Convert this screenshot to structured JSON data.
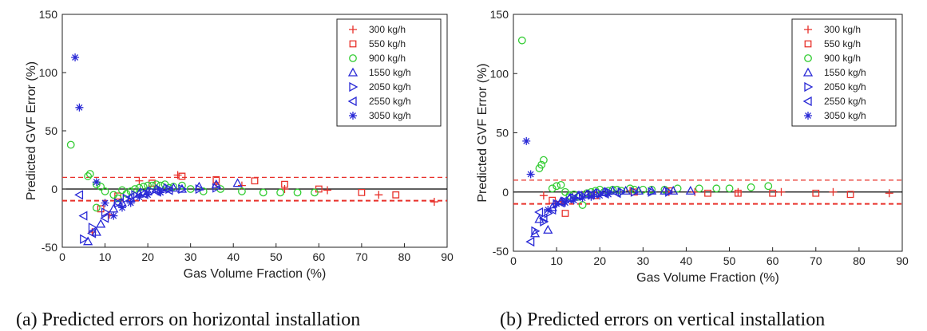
{
  "captions": {
    "a": "(a) Predicted errors on horizontal installation",
    "b": "(b) Predicted errors on vertical installation"
  },
  "series_styles": [
    {
      "name": "300 kg/h",
      "marker": "plus",
      "color": "#e8302a"
    },
    {
      "name": "550 kg/h",
      "marker": "square",
      "color": "#e8302a"
    },
    {
      "name": "900 kg/h",
      "marker": "circle",
      "color": "#33cc33"
    },
    {
      "name": "1550 kg/h",
      "marker": "triangle-up",
      "color": "#2a2ad6"
    },
    {
      "name": "2050 kg/h",
      "marker": "triangle-right",
      "color": "#2a2ad6"
    },
    {
      "name": "2550 kg/h",
      "marker": "triangle-left",
      "color": "#2a2ad6"
    },
    {
      "name": "3050 kg/h",
      "marker": "asterisk",
      "color": "#2a2ad6"
    }
  ],
  "chart_data": [
    {
      "type": "scatter",
      "title": "",
      "xlabel": "Gas Volume Fraction (%)",
      "ylabel": "Predicted GVF Error (%)",
      "xlim": [
        0,
        90
      ],
      "ylim": [
        -50,
        150
      ],
      "xticks": [
        0,
        10,
        20,
        30,
        40,
        50,
        60,
        70,
        80,
        90
      ],
      "yticks": [
        -50,
        0,
        50,
        100,
        150
      ],
      "legend_position": "top-right",
      "reference_lines": [
        {
          "y": 0,
          "color": "#000000",
          "style": "solid"
        },
        {
          "y": 10,
          "color": "#e8302a",
          "style": "dashed"
        },
        {
          "y": -10,
          "color": "#e8302a",
          "style": "dashed"
        }
      ],
      "series": [
        {
          "name": "300 kg/h",
          "points": [
            [
              7,
              -37
            ],
            [
              11,
              -22
            ],
            [
              18,
              7
            ],
            [
              27,
              12
            ],
            [
              36,
              4
            ],
            [
              42,
              3
            ],
            [
              52,
              0
            ],
            [
              62,
              -1
            ],
            [
              74,
              -5
            ],
            [
              87,
              -11
            ]
          ]
        },
        {
          "name": "550 kg/h",
          "points": [
            [
              9,
              -17
            ],
            [
              13,
              -6
            ],
            [
              21,
              5
            ],
            [
              28,
              11
            ],
            [
              36,
              8
            ],
            [
              45,
              7
            ],
            [
              52,
              4
            ],
            [
              60,
              0
            ],
            [
              70,
              -3
            ],
            [
              78,
              -5
            ]
          ]
        },
        {
          "name": "900 kg/h",
          "points": [
            [
              2,
              38
            ],
            [
              6,
              11
            ],
            [
              6.5,
              13
            ],
            [
              8,
              4
            ],
            [
              9,
              2
            ],
            [
              10,
              -2
            ],
            [
              12,
              -5
            ],
            [
              13,
              -8
            ],
            [
              14,
              -1
            ],
            [
              15,
              -4
            ],
            [
              16,
              -2
            ],
            [
              17,
              0
            ],
            [
              18,
              1
            ],
            [
              19,
              2
            ],
            [
              20,
              3
            ],
            [
              21,
              3
            ],
            [
              22,
              4
            ],
            [
              23,
              3
            ],
            [
              24,
              4
            ],
            [
              25,
              1
            ],
            [
              26,
              2
            ],
            [
              28,
              3
            ],
            [
              30,
              0
            ],
            [
              33,
              -2
            ],
            [
              37,
              0
            ],
            [
              42,
              -2
            ],
            [
              47,
              -3
            ],
            [
              51,
              -3
            ],
            [
              55,
              -3
            ],
            [
              59,
              -3
            ],
            [
              8,
              -16
            ]
          ]
        },
        {
          "name": "1550 kg/h",
          "points": [
            [
              6,
              -45
            ],
            [
              8,
              -37
            ],
            [
              9,
              -30
            ],
            [
              12,
              -17
            ],
            [
              14,
              -12
            ],
            [
              16,
              -8
            ],
            [
              18,
              -4
            ],
            [
              20,
              -2
            ],
            [
              22,
              0
            ],
            [
              24,
              1
            ],
            [
              26,
              1
            ],
            [
              28,
              0
            ],
            [
              32,
              2
            ],
            [
              36,
              4
            ],
            [
              41,
              5
            ]
          ]
        },
        {
          "name": "2050 kg/h",
          "points": [
            [
              5,
              -43
            ],
            [
              7,
              -33
            ],
            [
              10,
              -20
            ],
            [
              13,
              -12
            ],
            [
              15,
              -8
            ],
            [
              17,
              -5
            ],
            [
              19,
              -3
            ],
            [
              21,
              -2
            ],
            [
              23,
              -1
            ],
            [
              25,
              0
            ],
            [
              28,
              0
            ],
            [
              32,
              0
            ],
            [
              36,
              1
            ]
          ]
        },
        {
          "name": "2550 kg/h",
          "points": [
            [
              4,
              -5
            ],
            [
              5,
              -23
            ],
            [
              7,
              -38
            ],
            [
              10,
              -25
            ],
            [
              13,
              -12
            ],
            [
              16,
              -7
            ],
            [
              19,
              -4
            ],
            [
              22,
              -2
            ],
            [
              25,
              -1
            ]
          ]
        },
        {
          "name": "3050 kg/h",
          "points": [
            [
              3,
              113
            ],
            [
              4,
              70
            ],
            [
              8,
              6
            ],
            [
              10,
              -12
            ],
            [
              12,
              -23
            ],
            [
              14,
              -16
            ],
            [
              16,
              -12
            ],
            [
              18,
              -7
            ],
            [
              20,
              -5
            ],
            [
              23,
              -3
            ]
          ]
        }
      ]
    },
    {
      "type": "scatter",
      "title": "",
      "xlabel": "Gas Volume Fraction (%)",
      "ylabel": "Predicted GVF Error (%)",
      "xlim": [
        0,
        90
      ],
      "ylim": [
        -50,
        150
      ],
      "xticks": [
        0,
        10,
        20,
        30,
        40,
        50,
        60,
        70,
        80,
        90
      ],
      "yticks": [
        -50,
        0,
        50,
        100,
        150
      ],
      "legend_position": "top-right",
      "reference_lines": [
        {
          "y": 0,
          "color": "#000000",
          "style": "solid"
        },
        {
          "y": 10,
          "color": "#e8302a",
          "style": "dashed"
        },
        {
          "y": -10,
          "color": "#e8302a",
          "style": "dashed"
        }
      ],
      "series": [
        {
          "name": "300 kg/h",
          "points": [
            [
              7,
              -3
            ],
            [
              11,
              -8
            ],
            [
              18,
              -3
            ],
            [
              27,
              1
            ],
            [
              36,
              0
            ],
            [
              42,
              0
            ],
            [
              52,
              0
            ],
            [
              62,
              0
            ],
            [
              74,
              0
            ],
            [
              87,
              -1
            ]
          ]
        },
        {
          "name": "550 kg/h",
          "points": [
            [
              9,
              -7
            ],
            [
              12,
              -18
            ],
            [
              19,
              -3
            ],
            [
              28,
              0
            ],
            [
              36,
              1
            ],
            [
              45,
              -1
            ],
            [
              52,
              -1
            ],
            [
              60,
              -1
            ],
            [
              70,
              -1
            ],
            [
              78,
              -2
            ]
          ]
        },
        {
          "name": "900 kg/h",
          "points": [
            [
              2,
              128
            ],
            [
              6,
              20
            ],
            [
              6.5,
              23
            ],
            [
              7,
              27
            ],
            [
              9,
              3
            ],
            [
              10,
              5
            ],
            [
              11,
              6
            ],
            [
              12,
              0
            ],
            [
              13,
              -3
            ],
            [
              14,
              -2
            ],
            [
              15,
              -4
            ],
            [
              16,
              -11
            ],
            [
              17,
              -1
            ],
            [
              18,
              0
            ],
            [
              19,
              1
            ],
            [
              20,
              2
            ],
            [
              21,
              0
            ],
            [
              22,
              1
            ],
            [
              23,
              2
            ],
            [
              24,
              2
            ],
            [
              25,
              1
            ],
            [
              27,
              3
            ],
            [
              28,
              2
            ],
            [
              30,
              2
            ],
            [
              32,
              2
            ],
            [
              35,
              2
            ],
            [
              38,
              3
            ],
            [
              43,
              3
            ],
            [
              47,
              3
            ],
            [
              50,
              3
            ],
            [
              55,
              4
            ],
            [
              59,
              5
            ]
          ]
        },
        {
          "name": "1550 kg/h",
          "points": [
            [
              5,
              -35
            ],
            [
              6,
              -23
            ],
            [
              8,
              -32
            ],
            [
              9,
              -13
            ],
            [
              11,
              -8
            ],
            [
              13,
              -5
            ],
            [
              15,
              -3
            ],
            [
              17,
              -2
            ],
            [
              19,
              -1
            ],
            [
              21,
              0
            ],
            [
              23,
              1
            ],
            [
              26,
              1
            ],
            [
              29,
              1
            ],
            [
              32,
              1
            ],
            [
              35,
              1
            ],
            [
              37,
              1
            ],
            [
              41,
              1
            ]
          ]
        },
        {
          "name": "2050 kg/h",
          "points": [
            [
              5,
              -33
            ],
            [
              7,
              -25
            ],
            [
              8,
              -18
            ],
            [
              10,
              -10
            ],
            [
              12,
              -8
            ],
            [
              14,
              -5
            ],
            [
              16,
              -3
            ],
            [
              18,
              -2
            ],
            [
              20,
              -1
            ],
            [
              22,
              0
            ],
            [
              25,
              0
            ],
            [
              28,
              0
            ],
            [
              32,
              0
            ],
            [
              36,
              0
            ]
          ]
        },
        {
          "name": "2550 kg/h",
          "points": [
            [
              4,
              -42
            ],
            [
              6,
              -17
            ],
            [
              7,
              -22
            ],
            [
              9,
              -15
            ],
            [
              11,
              -9
            ],
            [
              13,
              -5
            ],
            [
              15,
              -3
            ],
            [
              18,
              -2
            ],
            [
              21,
              -1
            ],
            [
              24,
              -1
            ]
          ]
        },
        {
          "name": "3050 kg/h",
          "points": [
            [
              3,
              43
            ],
            [
              4,
              15
            ],
            [
              8,
              -15
            ],
            [
              10,
              -10
            ],
            [
              12,
              -9
            ],
            [
              14,
              -7
            ],
            [
              16,
              -5
            ],
            [
              18,
              -4
            ],
            [
              20,
              -3
            ],
            [
              22,
              -2
            ]
          ]
        }
      ]
    }
  ]
}
